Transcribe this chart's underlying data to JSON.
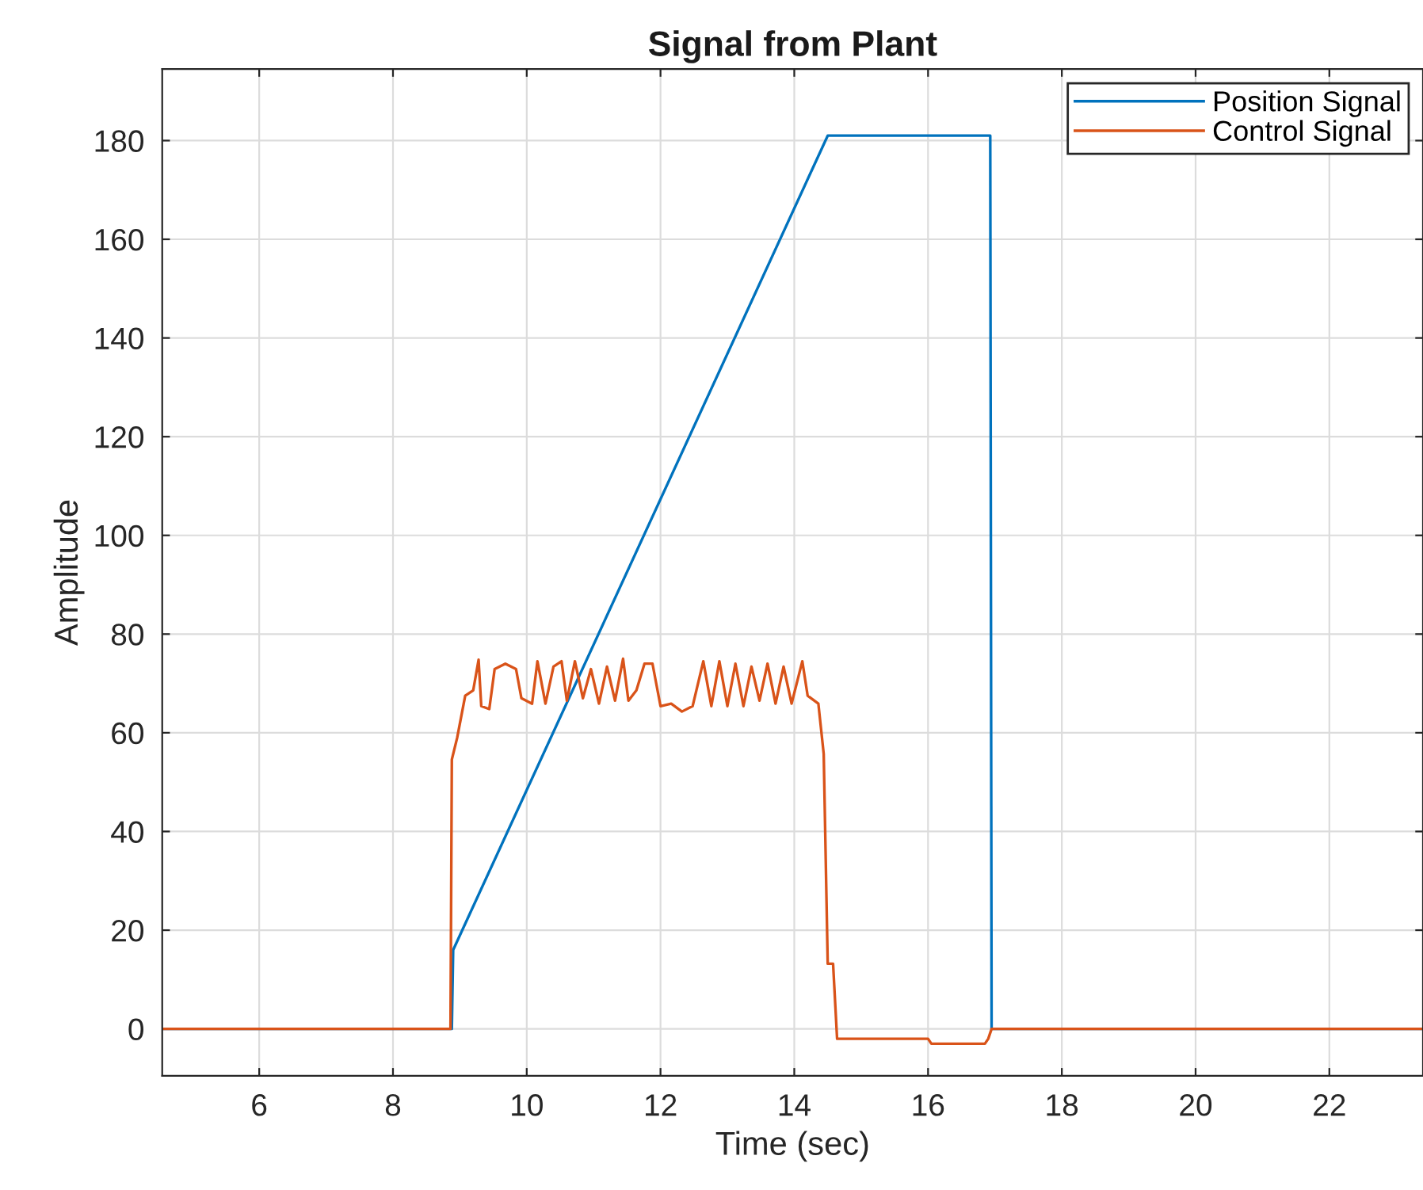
{
  "chart_data": {
    "type": "line",
    "title": "Signal from Plant",
    "xlabel": "Time (sec)",
    "ylabel": "Amplitude",
    "xlim": [
      4.55,
      23.4
    ],
    "ylim": [
      -9.5,
      194.5
    ],
    "xticks": [
      6,
      8,
      10,
      12,
      14,
      16,
      18,
      20,
      22
    ],
    "yticks": [
      0,
      20,
      40,
      60,
      80,
      100,
      120,
      140,
      160,
      180
    ],
    "grid": true,
    "legend": "top right",
    "line_style": "solid",
    "series": [
      {
        "name": "Position Signal",
        "color": "#0072bd",
        "x": [
          4.55,
          8.88,
          8.9,
          14.5,
          16.93,
          16.95,
          23.4
        ],
        "values": [
          0,
          0,
          16,
          181,
          181,
          0,
          0
        ]
      },
      {
        "name": "Control Signal",
        "color": "#d95319",
        "x": [
          4.55,
          8.86,
          8.88,
          8.96,
          9.08,
          9.2,
          9.28,
          9.32,
          9.44,
          9.52,
          9.68,
          9.84,
          9.92,
          10.08,
          10.16,
          10.28,
          10.4,
          10.52,
          10.6,
          10.72,
          10.84,
          10.96,
          11.08,
          11.2,
          11.32,
          11.44,
          11.52,
          11.64,
          11.76,
          11.88,
          12.0,
          12.16,
          12.32,
          12.48,
          12.64,
          12.76,
          12.88,
          13.0,
          13.12,
          13.24,
          13.36,
          13.48,
          13.6,
          13.72,
          13.84,
          13.96,
          14.12,
          14.2,
          14.36,
          14.44,
          14.5,
          14.58,
          14.64,
          16.0,
          16.05,
          16.85,
          16.9,
          16.95,
          23.4
        ],
        "values": [
          0,
          0,
          54.6,
          59,
          67.5,
          68.6,
          74.8,
          65.4,
          64.8,
          72.9,
          74,
          72.9,
          67,
          65.9,
          74.5,
          65.9,
          73.4,
          74.5,
          66.5,
          74.5,
          67,
          72.9,
          65.9,
          73.4,
          66.5,
          75,
          66.5,
          68.6,
          74,
          74,
          65.4,
          65.9,
          64.3,
          65.4,
          74.5,
          65.4,
          74.5,
          65.4,
          74,
          65.4,
          73.4,
          66.5,
          74,
          65.9,
          73.4,
          65.9,
          74.5,
          67.5,
          65.9,
          55.7,
          13.2,
          13.2,
          -2,
          -2,
          -3,
          -3,
          -2,
          0,
          0
        ]
      }
    ]
  }
}
